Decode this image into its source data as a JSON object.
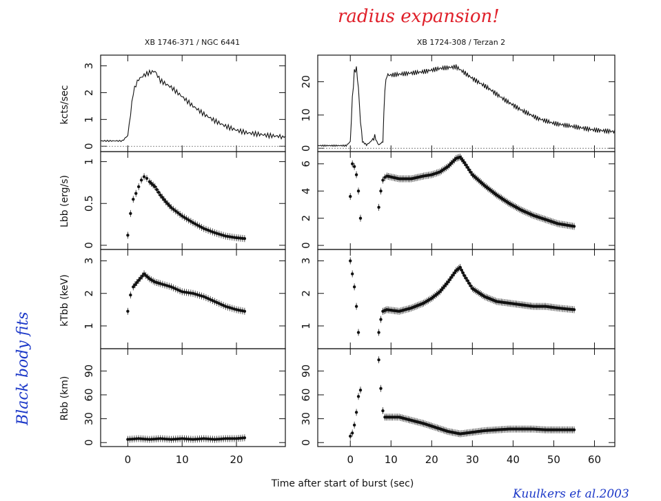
{
  "annotations": {
    "top_note": "radius expansion!",
    "side_note": "Black body fits",
    "credit": "Kuulkers et al.2003",
    "colors": {
      "note_red": "#e0202a",
      "note_blue": "#1c38c8"
    }
  },
  "chart_data": [
    {
      "type": "line",
      "title": "XB 1746-371 / NGC 6441",
      "ylabel": "kcts/sec",
      "xlim": [
        -5,
        29
      ],
      "ylim": [
        -0.2,
        3.4
      ],
      "yticks": [
        0,
        1,
        2,
        3
      ],
      "xticks": [
        0,
        10,
        20
      ],
      "series": [
        {
          "x": [
            -5,
            -1,
            0,
            0.5,
            1,
            1.5,
            2,
            3,
            4,
            5,
            6,
            8,
            10,
            12,
            14,
            16,
            18,
            20,
            22,
            24,
            26,
            29
          ],
          "values": [
            0.2,
            0.2,
            0.4,
            1.2,
            2.0,
            2.3,
            2.5,
            2.65,
            2.75,
            2.8,
            2.45,
            2.2,
            1.85,
            1.5,
            1.2,
            0.95,
            0.75,
            0.6,
            0.5,
            0.45,
            0.4,
            0.35
          ]
        }
      ]
    },
    {
      "type": "scatter",
      "ylabel": "Lbb (erg/s)",
      "xlim": [
        -5,
        29
      ],
      "ylim": [
        -0.05,
        1.12
      ],
      "yticks": [
        0,
        0.5,
        1
      ],
      "xticks": [
        0,
        10,
        20
      ],
      "series": [
        {
          "x": [
            0,
            0.5,
            1,
            1.5,
            2,
            2.5,
            3,
            3.5,
            4,
            5,
            6,
            7,
            8,
            10,
            12,
            14,
            16,
            18,
            20,
            21.5
          ],
          "values": [
            0.12,
            0.38,
            0.55,
            0.62,
            0.7,
            0.78,
            0.82,
            0.8,
            0.76,
            0.7,
            0.6,
            0.52,
            0.45,
            0.35,
            0.27,
            0.2,
            0.15,
            0.11,
            0.09,
            0.08
          ]
        }
      ]
    },
    {
      "type": "scatter",
      "ylabel": "kTbb (keV)",
      "xlim": [
        -5,
        29
      ],
      "ylim": [
        0.3,
        3.35
      ],
      "yticks": [
        1,
        2,
        3
      ],
      "xticks": [
        0,
        10,
        20
      ],
      "series": [
        {
          "x": [
            0,
            0.5,
            1,
            2,
            3,
            4,
            5,
            6,
            8,
            10,
            12,
            14,
            16,
            18,
            20,
            21.5
          ],
          "values": [
            1.45,
            1.95,
            2.2,
            2.4,
            2.6,
            2.45,
            2.35,
            2.3,
            2.2,
            2.05,
            2.0,
            1.9,
            1.75,
            1.6,
            1.5,
            1.45
          ]
        }
      ]
    },
    {
      "type": "scatter",
      "ylabel": "Rbb (km)",
      "xlabel": "Time after start of burst (sec)",
      "xlim": [
        -5,
        29
      ],
      "ylim": [
        -5,
        118
      ],
      "yticks": [
        0,
        30,
        60,
        90
      ],
      "xticks": [
        0,
        10,
        20
      ],
      "series": [
        {
          "x": [
            0,
            2,
            4,
            6,
            8,
            10,
            12,
            14,
            16,
            18,
            20,
            21.5
          ],
          "values": [
            4,
            5,
            4,
            5,
            4,
            5,
            4,
            5,
            4,
            5,
            5,
            6
          ]
        }
      ]
    },
    {
      "type": "line",
      "title": "XB 1724-308 / Terzan 2",
      "xlim": [
        -8,
        65
      ],
      "ylim": [
        -1,
        28
      ],
      "yticks": [
        0,
        10,
        20
      ],
      "xticks": [
        0,
        10,
        20,
        30,
        40,
        50,
        60
      ],
      "series": [
        {
          "x": [
            -8,
            -1,
            0,
            0.5,
            1,
            1.5,
            2,
            2.5,
            3,
            4,
            5,
            6,
            6.5,
            7,
            8,
            8.5,
            9,
            10,
            14,
            18,
            22,
            26,
            30,
            34,
            38,
            42,
            46,
            50,
            55,
            60,
            65
          ],
          "values": [
            0.8,
            0.8,
            2,
            15,
            23,
            24,
            18,
            8,
            2,
            1,
            2,
            3.5,
            2,
            1,
            2,
            18,
            22,
            22,
            22.5,
            23,
            24,
            24.5,
            21,
            18,
            14.5,
            11.5,
            9,
            7.5,
            6.5,
            5.5,
            5
          ]
        }
      ]
    },
    {
      "type": "scatter",
      "xlim": [
        -8,
        65
      ],
      "ylim": [
        -0.3,
        6.9
      ],
      "yticks": [
        0,
        2,
        4,
        6
      ],
      "xticks": [
        0,
        10,
        20,
        30,
        40,
        50,
        60
      ],
      "series": [
        {
          "x": [
            0,
            0.5,
            1,
            1.5,
            2,
            2.5,
            7,
            7.5,
            8,
            8.5,
            9,
            12,
            15,
            18,
            20,
            22,
            24,
            26,
            27,
            28,
            30,
            33,
            36,
            39,
            42,
            45,
            48,
            51,
            55
          ],
          "values": [
            3.6,
            6.0,
            5.8,
            5.2,
            4.0,
            2.0,
            2.8,
            4.0,
            4.8,
            5.0,
            5.1,
            4.9,
            4.9,
            5.1,
            5.2,
            5.4,
            5.8,
            6.4,
            6.5,
            6.1,
            5.2,
            4.4,
            3.7,
            3.1,
            2.6,
            2.2,
            1.9,
            1.6,
            1.4
          ]
        }
      ]
    },
    {
      "type": "scatter",
      "xlim": [
        -8,
        65
      ],
      "ylim": [
        0.3,
        3.35
      ],
      "yticks": [
        1,
        2,
        3
      ],
      "xticks": [
        0,
        10,
        20,
        30,
        40,
        50,
        60
      ],
      "series": [
        {
          "x": [
            0,
            0.5,
            1,
            1.5,
            2,
            7,
            7.5,
            8,
            9,
            12,
            15,
            18,
            20,
            22,
            24,
            26,
            27,
            28,
            30,
            33,
            36,
            39,
            42,
            45,
            48,
            51,
            55
          ],
          "values": [
            3.0,
            2.6,
            2.2,
            1.6,
            0.8,
            0.8,
            1.2,
            1.45,
            1.5,
            1.45,
            1.55,
            1.7,
            1.85,
            2.05,
            2.35,
            2.7,
            2.8,
            2.55,
            2.15,
            1.9,
            1.75,
            1.7,
            1.65,
            1.6,
            1.6,
            1.55,
            1.5
          ]
        }
      ]
    },
    {
      "type": "scatter",
      "xlim": [
        -8,
        65
      ],
      "ylim": [
        -5,
        118
      ],
      "yticks": [
        0,
        30,
        60,
        90
      ],
      "xticks": [
        0,
        10,
        20,
        30,
        40,
        50,
        60
      ],
      "series": [
        {
          "x": [
            0,
            0.5,
            1,
            1.5,
            2,
            2.5,
            7,
            7.5,
            8,
            8.5,
            10,
            12,
            15,
            18,
            21,
            24,
            27,
            30,
            33,
            36,
            39,
            42,
            45,
            48,
            51,
            55
          ],
          "values": [
            8,
            12,
            22,
            38,
            58,
            66,
            104,
            68,
            40,
            32,
            32,
            32,
            28,
            24,
            19,
            14,
            11,
            13,
            15,
            16,
            17,
            17,
            17,
            16,
            16,
            16
          ]
        }
      ]
    }
  ]
}
